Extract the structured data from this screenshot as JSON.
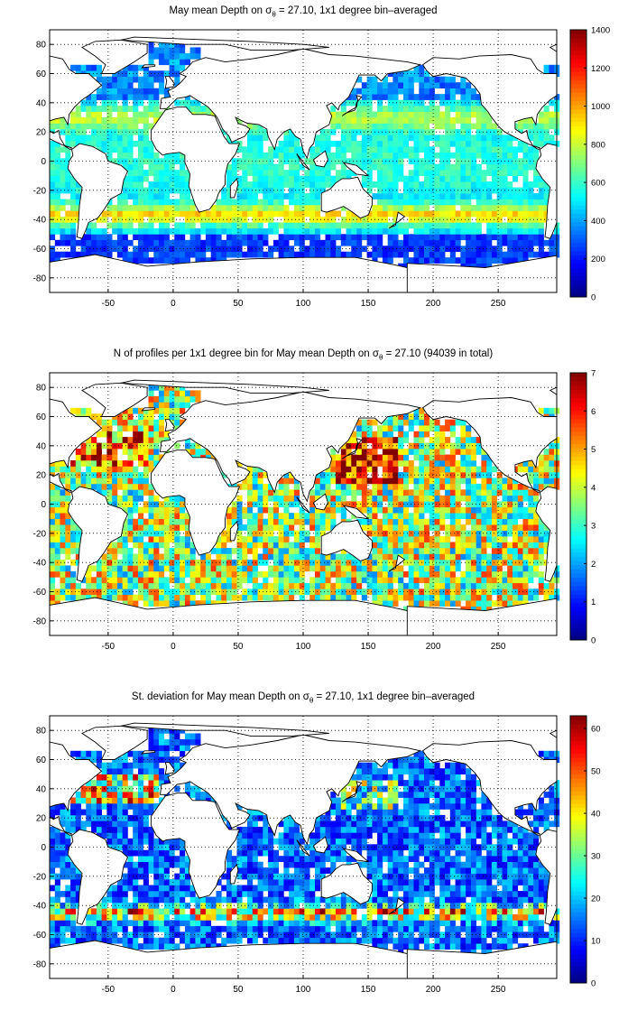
{
  "colors": {
    "land": "#ffffff",
    "ocean_nodata": "#ffffff",
    "coastline": "#000000",
    "grid": "#000000",
    "colormap": "jet"
  },
  "chart_data": [
    {
      "type": "heatmap",
      "title_prefix": "May mean Depth on ",
      "title_sigma": "σ",
      "title_sub": "θ",
      "title_suffix": " = 27.10, 1x1 degree bin–averaged",
      "xlim": [
        -95,
        295
      ],
      "ylim": [
        -90,
        90
      ],
      "x_ticks": [
        -50,
        0,
        50,
        100,
        150,
        200,
        250
      ],
      "y_ticks": [
        -80,
        -60,
        -40,
        -20,
        0,
        20,
        40,
        60,
        80
      ],
      "grid": true,
      "colorbar": {
        "min": 0,
        "max": 1400,
        "ticks": [
          0,
          200,
          400,
          600,
          800,
          1000,
          1200,
          1400
        ],
        "placement": "right"
      },
      "field": "mean_depth"
    },
    {
      "type": "heatmap",
      "title_prefix": "N of profiles per 1x1 degree bin for May mean Depth on ",
      "title_sigma": "σ",
      "title_sub": "θ",
      "title_suffix": " = 27.10 (94039 in total)",
      "xlim": [
        -95,
        295
      ],
      "ylim": [
        -90,
        90
      ],
      "x_ticks": [
        -50,
        0,
        50,
        100,
        150,
        200,
        250
      ],
      "y_ticks": [
        -80,
        -60,
        -40,
        -20,
        0,
        20,
        40,
        60,
        80
      ],
      "grid": true,
      "colorbar": {
        "min": 0,
        "max": 7,
        "ticks": [
          0,
          1,
          2,
          3,
          4,
          5,
          6,
          7
        ],
        "placement": "right"
      },
      "field": "profile_count"
    },
    {
      "type": "heatmap",
      "title_prefix": "St. deviation for May mean Depth on ",
      "title_sigma": "σ",
      "title_sub": "θ",
      "title_suffix": " = 27.10, 1x1 degree bin–averaged",
      "xlim": [
        -95,
        295
      ],
      "ylim": [
        -90,
        90
      ],
      "x_ticks": [
        -50,
        0,
        50,
        100,
        150,
        200,
        250
      ],
      "y_ticks": [
        -80,
        -60,
        -40,
        -20,
        0,
        20,
        40,
        60,
        80
      ],
      "grid": true,
      "colorbar": {
        "min": 0,
        "max": 63,
        "ticks": [
          0,
          10,
          20,
          30,
          40,
          50,
          60
        ],
        "placement": "right"
      },
      "field": "std_depth"
    }
  ]
}
